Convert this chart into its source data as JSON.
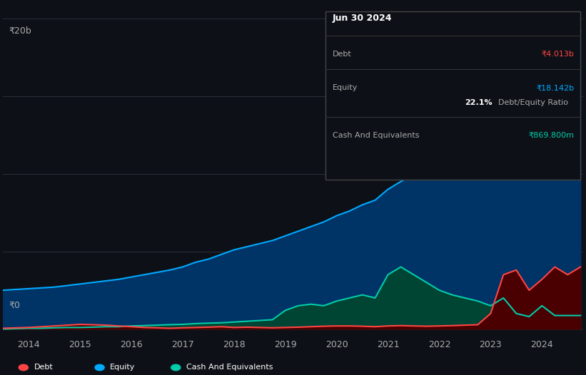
{
  "background_color": "#0d1117",
  "plot_bg_color": "#0d1117",
  "title": "Jun 30 2024",
  "ylabel_top": "₹20b",
  "ylabel_zero": "₹0",
  "x_ticks": [
    2014,
    2015,
    2016,
    2017,
    2018,
    2019,
    2020,
    2021,
    2022,
    2023,
    2024
  ],
  "ylim": [
    -0.5,
    21
  ],
  "xlim": [
    2013.5,
    2024.8
  ],
  "grid_color": "#2a2f3a",
  "tooltip": {
    "title": "Jun 30 2024",
    "debt_label": "Debt",
    "debt_value": "₹4.013b",
    "equity_label": "Equity",
    "equity_value": "₹18.142b",
    "ratio_value": "22.1%",
    "ratio_label": "Debt/Equity Ratio",
    "cash_label": "Cash And Equivalents",
    "cash_value": "₹869.800m",
    "bg_color": "#0d1117",
    "border_color": "#333333"
  },
  "legend": {
    "debt_label": "Debt",
    "equity_label": "Equity",
    "cash_label": "Cash And Equivalents"
  },
  "equity_color": "#00aaff",
  "equity_fill": "#003366",
  "debt_color": "#ff4444",
  "debt_fill": "#4a0000",
  "cash_color": "#00ccaa",
  "cash_fill": "#004433",
  "equity_data": {
    "x": [
      2013.5,
      2014.0,
      2014.25,
      2014.5,
      2014.75,
      2015.0,
      2015.25,
      2015.5,
      2015.75,
      2016.0,
      2016.25,
      2016.5,
      2016.75,
      2017.0,
      2017.25,
      2017.5,
      2017.75,
      2018.0,
      2018.25,
      2018.5,
      2018.75,
      2019.0,
      2019.25,
      2019.5,
      2019.75,
      2020.0,
      2020.25,
      2020.5,
      2020.75,
      2021.0,
      2021.25,
      2021.5,
      2021.75,
      2022.0,
      2022.25,
      2022.5,
      2022.75,
      2023.0,
      2023.25,
      2023.5,
      2023.75,
      2024.0,
      2024.25,
      2024.5,
      2024.75
    ],
    "y": [
      2.5,
      2.6,
      2.65,
      2.7,
      2.8,
      2.9,
      3.0,
      3.1,
      3.2,
      3.35,
      3.5,
      3.65,
      3.8,
      4.0,
      4.3,
      4.5,
      4.8,
      5.1,
      5.3,
      5.5,
      5.7,
      6.0,
      6.3,
      6.6,
      6.9,
      7.3,
      7.6,
      8.0,
      8.3,
      9.0,
      9.5,
      10.0,
      10.5,
      11.0,
      11.5,
      12.0,
      12.5,
      13.0,
      14.0,
      15.5,
      17.0,
      17.5,
      18.0,
      18.5,
      19.2
    ]
  },
  "debt_data": {
    "x": [
      2013.5,
      2014.0,
      2014.25,
      2014.5,
      2014.75,
      2015.0,
      2015.25,
      2015.5,
      2015.75,
      2016.0,
      2016.25,
      2016.5,
      2016.75,
      2017.0,
      2017.25,
      2017.5,
      2017.75,
      2018.0,
      2018.25,
      2018.5,
      2018.75,
      2019.0,
      2019.25,
      2019.5,
      2019.75,
      2020.0,
      2020.25,
      2020.5,
      2020.75,
      2021.0,
      2021.25,
      2021.5,
      2021.75,
      2022.0,
      2022.25,
      2022.5,
      2022.75,
      2023.0,
      2023.25,
      2023.5,
      2023.75,
      2024.0,
      2024.25,
      2024.5,
      2024.75
    ],
    "y": [
      0.05,
      0.1,
      0.15,
      0.2,
      0.25,
      0.3,
      0.28,
      0.25,
      0.2,
      0.15,
      0.1,
      0.08,
      0.05,
      0.08,
      0.1,
      0.12,
      0.15,
      0.1,
      0.12,
      0.1,
      0.08,
      0.1,
      0.12,
      0.15,
      0.18,
      0.2,
      0.2,
      0.18,
      0.15,
      0.2,
      0.22,
      0.2,
      0.18,
      0.2,
      0.22,
      0.25,
      0.28,
      1.0,
      3.5,
      3.8,
      2.5,
      3.2,
      4.0,
      3.5,
      4.0
    ]
  },
  "cash_data": {
    "x": [
      2013.5,
      2014.0,
      2014.25,
      2014.5,
      2014.75,
      2015.0,
      2015.25,
      2015.5,
      2015.75,
      2016.0,
      2016.25,
      2016.5,
      2016.75,
      2017.0,
      2017.25,
      2017.5,
      2017.75,
      2018.0,
      2018.25,
      2018.5,
      2018.75,
      2019.0,
      2019.25,
      2019.5,
      2019.75,
      2020.0,
      2020.25,
      2020.5,
      2020.75,
      2021.0,
      2021.25,
      2021.5,
      2021.75,
      2022.0,
      2022.25,
      2022.5,
      2022.75,
      2023.0,
      2023.25,
      2023.5,
      2023.75,
      2024.0,
      2024.25,
      2024.5,
      2024.75
    ],
    "y": [
      0.0,
      0.05,
      0.05,
      0.08,
      0.1,
      0.1,
      0.12,
      0.15,
      0.15,
      0.2,
      0.22,
      0.25,
      0.28,
      0.3,
      0.35,
      0.38,
      0.4,
      0.45,
      0.5,
      0.55,
      0.6,
      1.2,
      1.5,
      1.6,
      1.5,
      1.8,
      2.0,
      2.2,
      2.0,
      3.5,
      4.0,
      3.5,
      3.0,
      2.5,
      2.2,
      2.0,
      1.8,
      1.5,
      2.0,
      1.0,
      0.8,
      1.5,
      0.87,
      0.87,
      0.87
    ]
  }
}
